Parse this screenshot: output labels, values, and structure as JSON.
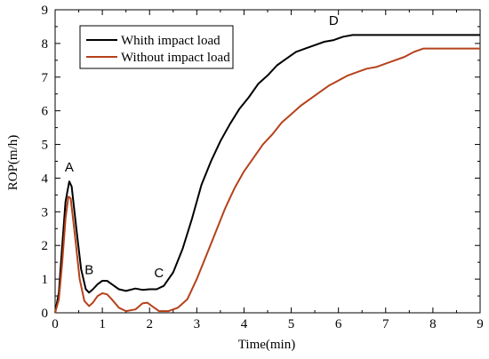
{
  "chart_data": {
    "type": "line",
    "title": "",
    "xlabel": "Time(min)",
    "ylabel": "ROP(m/h)",
    "xlim": [
      0,
      9
    ],
    "ylim": [
      0,
      9
    ],
    "xticks": [
      0,
      1,
      2,
      3,
      4,
      5,
      6,
      7,
      8,
      9
    ],
    "yticks": [
      0,
      1,
      2,
      3,
      4,
      5,
      6,
      7,
      8,
      9
    ],
    "grid": false,
    "legend_position": "top-left",
    "series": [
      {
        "name": "Whith impact load",
        "color": "#000000",
        "points": [
          [
            0.0,
            0.0
          ],
          [
            0.08,
            0.6
          ],
          [
            0.15,
            2.0
          ],
          [
            0.22,
            3.3
          ],
          [
            0.3,
            3.9
          ],
          [
            0.35,
            3.75
          ],
          [
            0.45,
            2.5
          ],
          [
            0.55,
            1.3
          ],
          [
            0.65,
            0.7
          ],
          [
            0.72,
            0.6
          ],
          [
            0.8,
            0.7
          ],
          [
            0.9,
            0.85
          ],
          [
            1.0,
            0.95
          ],
          [
            1.1,
            0.95
          ],
          [
            1.2,
            0.85
          ],
          [
            1.35,
            0.7
          ],
          [
            1.5,
            0.65
          ],
          [
            1.7,
            0.72
          ],
          [
            1.85,
            0.68
          ],
          [
            2.0,
            0.7
          ],
          [
            2.15,
            0.7
          ],
          [
            2.3,
            0.8
          ],
          [
            2.5,
            1.2
          ],
          [
            2.7,
            1.9
          ],
          [
            2.9,
            2.8
          ],
          [
            3.1,
            3.8
          ],
          [
            3.3,
            4.5
          ],
          [
            3.5,
            5.1
          ],
          [
            3.7,
            5.6
          ],
          [
            3.9,
            6.05
          ],
          [
            4.1,
            6.4
          ],
          [
            4.3,
            6.8
          ],
          [
            4.5,
            7.05
          ],
          [
            4.7,
            7.35
          ],
          [
            4.9,
            7.55
          ],
          [
            5.1,
            7.75
          ],
          [
            5.3,
            7.85
          ],
          [
            5.5,
            7.95
          ],
          [
            5.7,
            8.05
          ],
          [
            5.9,
            8.1
          ],
          [
            6.1,
            8.2
          ],
          [
            6.3,
            8.25
          ],
          [
            6.5,
            8.25
          ],
          [
            7.0,
            8.25
          ],
          [
            8.0,
            8.25
          ],
          [
            9.0,
            8.25
          ]
        ]
      },
      {
        "name": "Without impact load",
        "color": "#b5421b",
        "points": [
          [
            0.0,
            0.0
          ],
          [
            0.08,
            0.4
          ],
          [
            0.15,
            1.5
          ],
          [
            0.22,
            2.8
          ],
          [
            0.28,
            3.45
          ],
          [
            0.33,
            3.4
          ],
          [
            0.42,
            2.3
          ],
          [
            0.52,
            1.0
          ],
          [
            0.62,
            0.35
          ],
          [
            0.72,
            0.2
          ],
          [
            0.8,
            0.3
          ],
          [
            0.9,
            0.5
          ],
          [
            1.0,
            0.58
          ],
          [
            1.1,
            0.55
          ],
          [
            1.2,
            0.4
          ],
          [
            1.35,
            0.15
          ],
          [
            1.5,
            0.05
          ],
          [
            1.7,
            0.1
          ],
          [
            1.85,
            0.28
          ],
          [
            1.95,
            0.3
          ],
          [
            2.05,
            0.2
          ],
          [
            2.2,
            0.05
          ],
          [
            2.4,
            0.05
          ],
          [
            2.6,
            0.15
          ],
          [
            2.8,
            0.4
          ],
          [
            3.0,
            1.0
          ],
          [
            3.2,
            1.7
          ],
          [
            3.4,
            2.4
          ],
          [
            3.6,
            3.1
          ],
          [
            3.8,
            3.7
          ],
          [
            4.0,
            4.2
          ],
          [
            4.2,
            4.6
          ],
          [
            4.4,
            5.0
          ],
          [
            4.6,
            5.3
          ],
          [
            4.8,
            5.65
          ],
          [
            5.0,
            5.9
          ],
          [
            5.2,
            6.15
          ],
          [
            5.4,
            6.35
          ],
          [
            5.6,
            6.55
          ],
          [
            5.8,
            6.75
          ],
          [
            6.0,
            6.9
          ],
          [
            6.2,
            7.05
          ],
          [
            6.4,
            7.15
          ],
          [
            6.6,
            7.25
          ],
          [
            6.8,
            7.3
          ],
          [
            7.0,
            7.4
          ],
          [
            7.2,
            7.5
          ],
          [
            7.4,
            7.6
          ],
          [
            7.6,
            7.75
          ],
          [
            7.8,
            7.85
          ],
          [
            8.0,
            7.85
          ],
          [
            9.0,
            7.85
          ]
        ]
      }
    ],
    "annotations": [
      {
        "text": "A",
        "x": 0.3,
        "y": 4.2
      },
      {
        "text": "B",
        "x": 0.72,
        "y": 1.15
      },
      {
        "text": "C",
        "x": 2.2,
        "y": 1.05
      },
      {
        "text": "D",
        "x": 5.9,
        "y": 8.55
      }
    ]
  }
}
